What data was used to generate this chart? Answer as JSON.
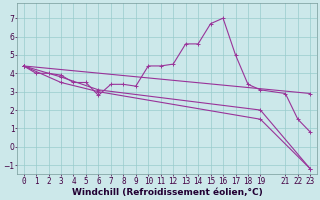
{
  "background_color": "#cce8ea",
  "line_color": "#993399",
  "grid_color": "#99cccc",
  "xlabel": "Windchill (Refroidissement éolien,°C)",
  "xlabel_fontsize": 6.5,
  "tick_fontsize": 5.5,
  "xlim": [
    -0.5,
    23.5
  ],
  "ylim": [
    -1.5,
    7.8
  ],
  "yticks": [
    -1,
    0,
    1,
    2,
    3,
    4,
    5,
    6,
    7
  ],
  "xticks": [
    0,
    1,
    2,
    3,
    4,
    5,
    6,
    7,
    8,
    9,
    10,
    11,
    12,
    13,
    14,
    15,
    16,
    17,
    18,
    19,
    21,
    22,
    23
  ],
  "line1_x": [
    0,
    1,
    2,
    3,
    4,
    5,
    6,
    7,
    8,
    9,
    10,
    11,
    12,
    13,
    14,
    15,
    16,
    17,
    18,
    19,
    21,
    22,
    23
  ],
  "line1_y": [
    4.4,
    4.0,
    4.0,
    3.9,
    3.5,
    3.5,
    2.8,
    3.4,
    3.4,
    3.3,
    4.4,
    4.4,
    4.5,
    5.6,
    5.6,
    6.7,
    7.0,
    5.0,
    3.4,
    3.1,
    2.9,
    1.5,
    0.8
  ],
  "line2_x": [
    0,
    23
  ],
  "line2_y": [
    4.4,
    2.9
  ],
  "line3_x": [
    0,
    3,
    6,
    19,
    23
  ],
  "line3_y": [
    4.4,
    3.8,
    3.1,
    2.0,
    -1.2
  ],
  "line4_x": [
    0,
    3,
    6,
    19,
    23
  ],
  "line4_y": [
    4.4,
    3.5,
    3.0,
    1.5,
    -1.2
  ]
}
